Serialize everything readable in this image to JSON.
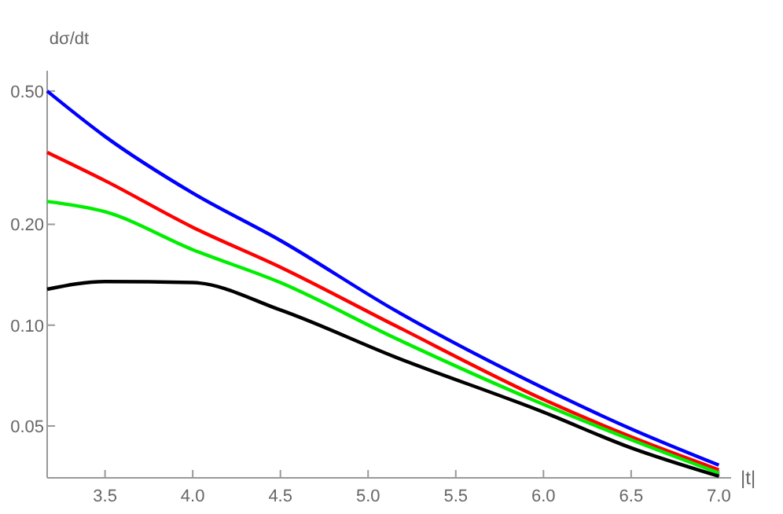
{
  "chart_data": {
    "type": "line",
    "xlabel": "|t|",
    "ylabel": "dσ/dt",
    "log": "y",
    "xlim": [
      3.17,
      7.07
    ],
    "ylim": [
      0.035,
      0.575
    ],
    "xticks": [
      3.5,
      {
        "value": 4,
        "label": "4.0"
      },
      4.5,
      {
        "value": 5,
        "label": "5.0"
      },
      5.5,
      {
        "value": 6,
        "label": "6.0"
      },
      6.5,
      {
        "value": 7,
        "label": "7.0"
      }
    ],
    "yticks": [
      {
        "value": 0.05,
        "label": "0.05"
      },
      {
        "value": 0.1,
        "label": "0.10"
      },
      {
        "value": 0.2,
        "label": "0.20"
      },
      {
        "value": 0.5,
        "label": "0.50"
      }
    ],
    "x": [
      3.17,
      3.5,
      4.0,
      4.5,
      5.15,
      6.0,
      6.5,
      7.0
    ],
    "series": [
      {
        "color": "#0000ff",
        "values": [
          0.5,
          0.366,
          0.248,
          0.179,
          0.111,
          0.0649,
          0.049,
          0.0382
        ]
      },
      {
        "color": "#ff0000",
        "values": [
          0.328,
          0.27,
          0.196,
          0.149,
          0.1,
          0.06,
          0.0464,
          0.037
        ]
      },
      {
        "color": "#00ee00",
        "values": [
          0.234,
          0.218,
          0.168,
          0.134,
          0.0917,
          0.058,
          0.0455,
          0.0362
        ]
      },
      {
        "color": "#000000",
        "values": [
          0.128,
          0.135,
          0.134,
          0.111,
          0.0805,
          0.055,
          0.043,
          0.0354
        ]
      }
    ]
  }
}
